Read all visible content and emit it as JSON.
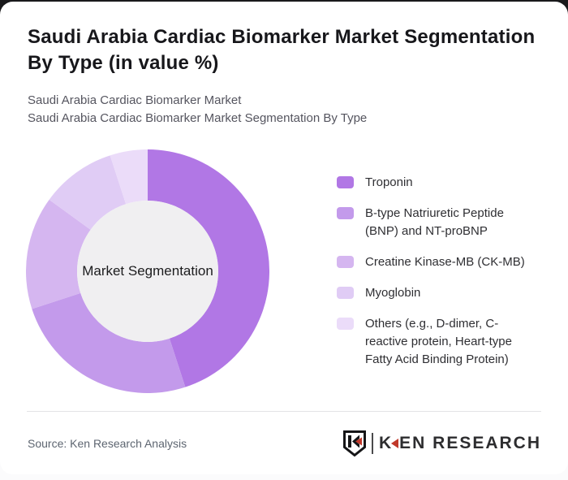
{
  "header": {
    "title_lines": [
      "Saudi Arabia Cardiac Biomarker Market Segmentation",
      "By Type (in value %)"
    ],
    "subtitle_lines": [
      "Saudi Arabia Cardiac Biomarker Market",
      "Saudi Arabia Cardiac Biomarker Market Segmentation By Type"
    ]
  },
  "chart_data": {
    "type": "pie",
    "subtype": "donut",
    "center_label": "Market Segmentation",
    "start_angle_deg": 0,
    "direction": "clockwise",
    "legend_position": "right",
    "series": [
      {
        "label": "Troponin",
        "value": 45,
        "color": "#b177e5"
      },
      {
        "label": "B-type Natriuretic Peptide (BNP) and NT-proBNP",
        "value": 25,
        "color": "#c39aeb"
      },
      {
        "label": "Creatine Kinase-MB (CK-MB)",
        "value": 15,
        "color": "#d5b6f0"
      },
      {
        "label": "Myoglobin",
        "value": 10,
        "color": "#e0ccf5"
      },
      {
        "label": "Others (e.g., D-dimer, C-reactive protein, Heart-type Fatty Acid Binding Protein)",
        "value": 5,
        "color": "#ebdcf9"
      }
    ],
    "center_circle_color": "#f0eff1"
  },
  "footer": {
    "source": "Source: Ken Research Analysis",
    "logo": {
      "wordmark_k": "K",
      "wordmark_rest": "EN RESEARCH",
      "accent_color": "#c0392b",
      "shield_color": "#151517"
    }
  },
  "colors": {
    "card_background": "#ffffff",
    "top_band": "#19191b",
    "title_text": "#17171b",
    "subtitle_text": "#55555f",
    "divider": "#e3e3e5"
  }
}
